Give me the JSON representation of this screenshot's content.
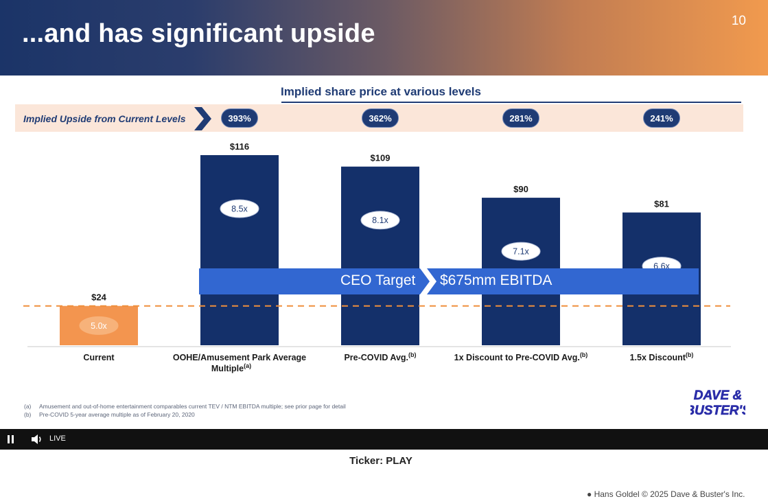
{
  "slide": {
    "title": "...and has significant upside",
    "page_number": "10",
    "upside_label": "Implied Upside from Current Levels",
    "ceo_target": {
      "left": "CEO Target",
      "right": "$675mm EBITDA"
    },
    "footnotes": [
      {
        "tag": "(a)",
        "text": "Amusement and out-of-home entertainment comparables current TEV / NTM EBITDA multiple; see prior page for detail"
      },
      {
        "tag": "(b)",
        "text": "Pre-COVID 5-year average multiple as of February 20, 2020"
      }
    ],
    "logo_text": [
      "DAVE &",
      "BUSTER'S"
    ]
  },
  "player": {
    "live_label": "LIVE",
    "pause_icon": "pause-icon",
    "volume_icon": "volume-icon"
  },
  "caption": {
    "ticker": "Ticker: PLAY",
    "credit": "● Hans Goldel © 2025 Dave & Buster's Inc."
  },
  "chart_data": {
    "type": "bar",
    "title": "Implied share price at various levels",
    "categories": [
      {
        "label": "Current",
        "sup": ""
      },
      {
        "label": "OOHE/Amusement Park Average|Multiple",
        "sup": "(a)"
      },
      {
        "label": "Pre-COVID Avg.",
        "sup": "(b)"
      },
      {
        "label": "1x Discount to Pre-COVID Avg.",
        "sup": "(b)"
      },
      {
        "label": "1.5x Discount",
        "sup": "(b)"
      }
    ],
    "values": [
      24,
      116,
      109,
      90,
      81
    ],
    "value_labels": [
      "$24",
      "$116",
      "$109",
      "$90",
      "$81"
    ],
    "multiples": [
      "5.0x",
      "8.5x",
      "8.1x",
      "7.1x",
      "6.6x"
    ],
    "implied_upside": [
      "",
      "393%",
      "362%",
      "281%",
      "241%"
    ],
    "reference_line": {
      "value": 24,
      "style": "dashed"
    },
    "colors": {
      "current": "#f3954f",
      "bars": "#14306a",
      "reference": "#ef8f3c",
      "ceo_band": "#3267d1",
      "upside_band": "#fbe6d9",
      "navy": "#1f3b74"
    },
    "ylim": [
      0,
      116
    ],
    "legend": "none",
    "grid": false
  }
}
